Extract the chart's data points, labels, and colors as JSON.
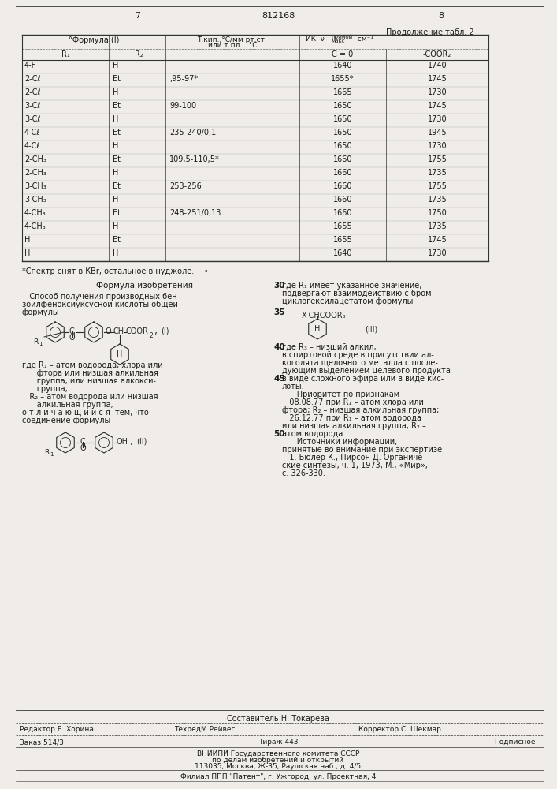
{
  "page_numbers": [
    "7",
    "812168",
    "8"
  ],
  "continuation_label": "Продолжение табл. 2",
  "table_rows": [
    [
      "4-F",
      "H",
      "",
      "1640",
      "1740"
    ],
    [
      "2-Cℓ",
      "Et",
      ",95-97*",
      "1655*",
      "1745"
    ],
    [
      "2-Cℓ",
      "H",
      "",
      "1665",
      "1730"
    ],
    [
      "3-Cℓ",
      "Et",
      "99-100",
      "1650",
      "1745"
    ],
    [
      "3-Cℓ",
      "H",
      "",
      "1650",
      "1730"
    ],
    [
      "4-Cℓ",
      "Et",
      "235-240/0,1",
      "1650",
      "1945"
    ],
    [
      "4-Cℓ",
      "H",
      "",
      "1650",
      "1730"
    ],
    [
      "2-CH₃",
      "Et",
      "109,5-110,5*",
      "1660",
      "1755"
    ],
    [
      "2-CH₃",
      "H",
      "",
      "1660",
      "1735"
    ],
    [
      "3-CH₃",
      "Et",
      "253-256",
      "1660",
      "1755"
    ],
    [
      "3-CH₃",
      "H",
      "",
      "1660",
      "1735"
    ],
    [
      "4-CH₃",
      "Et",
      "248-251/0,13",
      "1660",
      "1750"
    ],
    [
      "4-CH₃",
      "H",
      "",
      "1655",
      "1735"
    ],
    [
      "H",
      "Et",
      "",
      "1655",
      "1745"
    ],
    [
      "H",
      "H",
      "",
      "1640",
      "1730"
    ]
  ],
  "footnote": "*Спектр снят в КВr, остальное в нуджоле.    •",
  "formula_title": "Формула изобретения",
  "left_para1": "   Способ получения производных бен-",
  "left_para2": "зоилфеноксиуксусной кислоты общей",
  "left_para3": "формулы",
  "where_lines": [
    "где R₁ – атом водорода, хлора или",
    "      фтора или низшая алкильная",
    "      группа, или низшая алкокси-",
    "      группа;",
    "   R₂ – атом водорода или низшая",
    "      алкильная группа,",
    "о т л и ч а ю щ и й с я  тем, что",
    "соединение формулы"
  ],
  "right_lines_30": [
    "где R₁ имеет указанное значение,",
    "подвергают взаимодействию с бром-",
    "циклогексилацетатом формулы"
  ],
  "right_lines_after_f3": [
    "где R₃ – низший алкил,",
    "в спиртовой среде в присутствии ал-",
    "коголята щелочного металла с после-",
    "дующим выделением целевого продукта",
    "в виде сложного эфира или в виде кис-",
    "лоты."
  ],
  "priority_lines": [
    "      Приоритет по признакам",
    "   08.08.77 при R₁ – атом хлора или",
    "фтора; R₂ – низшая алкильная группа;",
    "   26.12.77 при R₁ – атом водорода",
    "или низшая алкильная группа; R₂ –",
    "атом водорода."
  ],
  "sources_lines": [
    "      Источники информации,",
    "принятые во внимание при экспертизе",
    "   1. Бюлер К., Пирсон Д. Органиче-",
    "ские синтезы, ч. 1, 1973, М., «Мир»,",
    "с. 326-330."
  ],
  "bottom_author": "Составитель Н. Токарева",
  "bottom_editor": "Редактор Е. Хорина",
  "bottom_tech": "ТехредМ.Рейвес",
  "bottom_corrector": "Корректор С. Шекмар",
  "bottom_order": "Заказ 514/3",
  "bottom_tirage": "Тираж 443",
  "bottom_signed": "Подписное",
  "bottom_vniip": "ВНИИПИ Государственного комитета СССР",
  "bottom_affairs": "по делам изобретений и открытий",
  "bottom_address": "113035, Москва, Ж-35, Раушская наб., д. 4/5",
  "bottom_branch": "Филиал ППП \"Патент\", г. Ужгород, ул. Проектная, 4",
  "bg_color": "#f0ede8",
  "text_color": "#1a1a1a"
}
